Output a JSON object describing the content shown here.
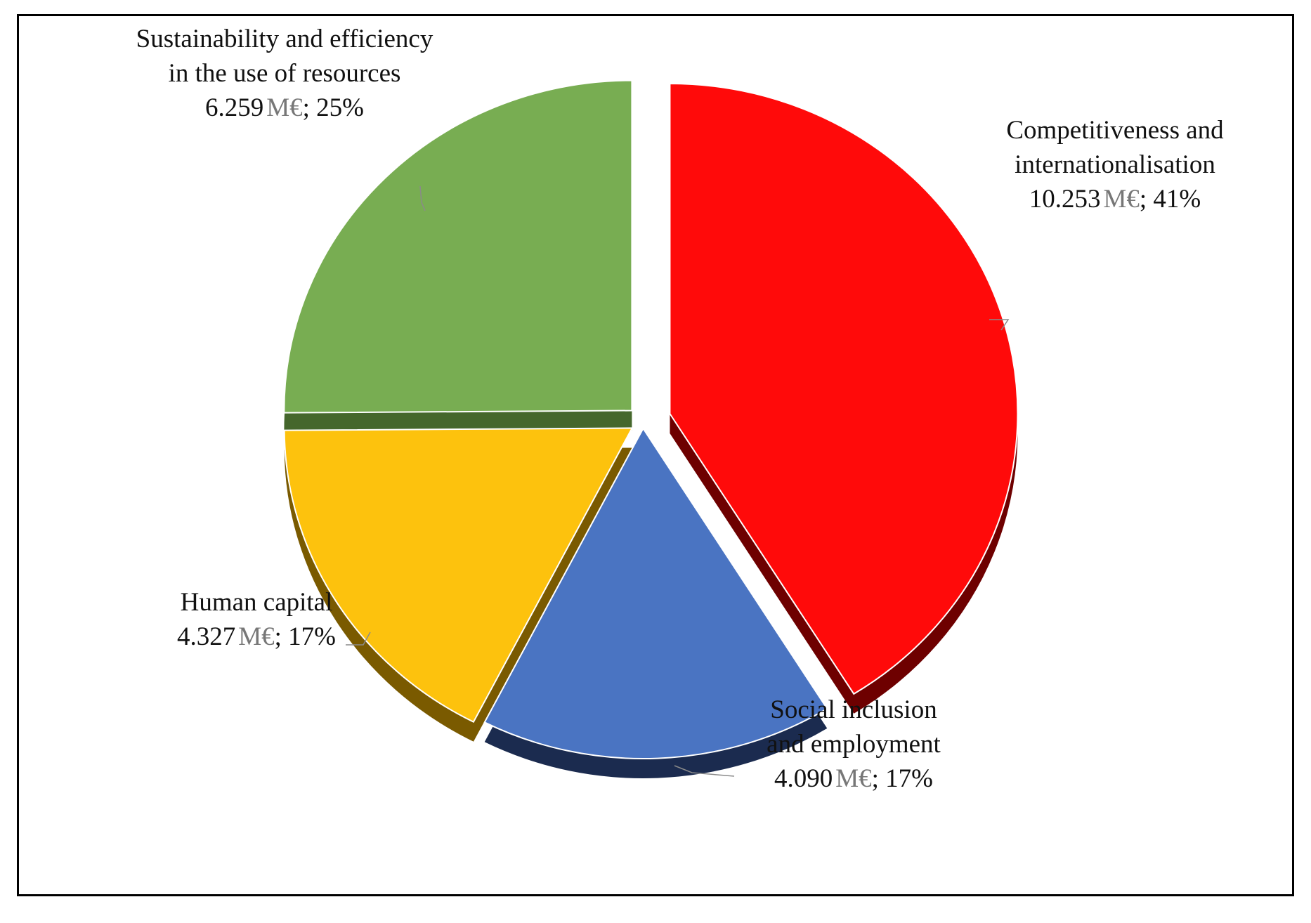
{
  "chart_data": {
    "type": "pie",
    "style": "3d-exploded",
    "title": "",
    "legend": "none",
    "slices": [
      {
        "label_lines": [
          "Competitiveness and",
          "internationalisation"
        ],
        "value": 10.253,
        "value_text": "10.253",
        "unit": "M€",
        "percent_text": "41%",
        "percent": 41,
        "color": "#ff0a0a",
        "side_color": "#6e0000"
      },
      {
        "label_lines": [
          "Social inclusion",
          "and employment"
        ],
        "value": 4.09,
        "value_text": "4.090",
        "unit": "M€",
        "percent_text": "17%",
        "percent": 17,
        "color": "#4a74c2",
        "side_color": "#1b2b4f"
      },
      {
        "label_lines": [
          "Human capital"
        ],
        "value": 4.327,
        "value_text": "4.327",
        "unit": "M€",
        "percent_text": "17%",
        "percent": 17,
        "color": "#fdc20d",
        "side_color": "#7a5a00"
      },
      {
        "label_lines": [
          "Sustainability and efficiency",
          "in the use of resources"
        ],
        "value": 6.259,
        "value_text": "6.259",
        "unit": "M€",
        "percent_text": "25%",
        "percent": 25,
        "color": "#78ad52",
        "side_color": "#45672c"
      }
    ]
  }
}
